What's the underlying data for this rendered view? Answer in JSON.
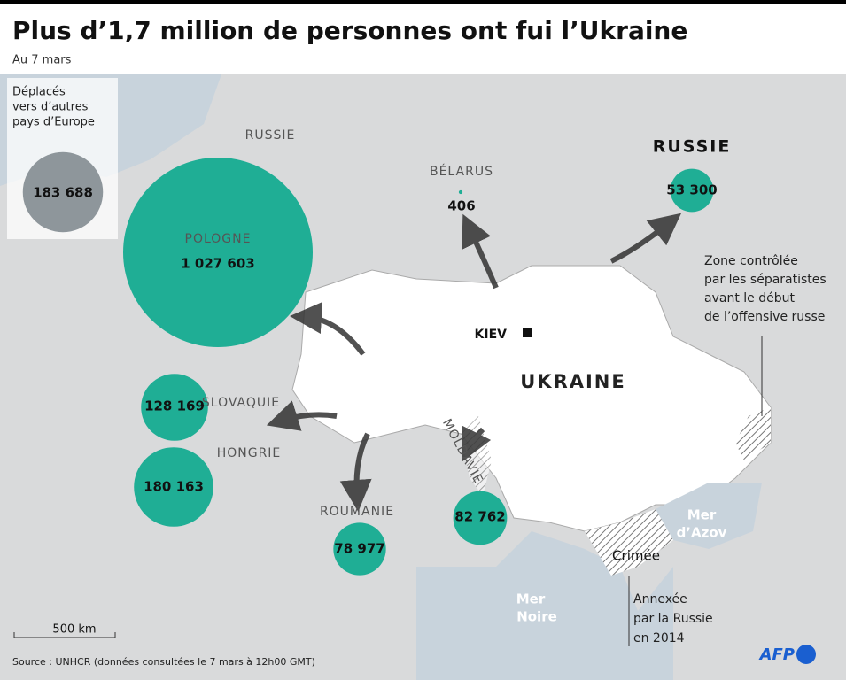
{
  "title": "Plus d’1,7 million de personnes ont fui l’Ukraine",
  "subtitle": "Au 7 mars",
  "legend_box": {
    "lines": [
      "Déplacés",
      "vers d’autres",
      "pays d’Europe"
    ],
    "value": 183688,
    "value_label": "183 688"
  },
  "refugees": [
    {
      "country": "POLOGNE",
      "value": 1027603,
      "value_label": "1 027 603"
    },
    {
      "country": "SLOVAQUIE",
      "value": 128169,
      "value_label": "128 169"
    },
    {
      "country": "HONGRIE",
      "value": 180163,
      "value_label": "180 163"
    },
    {
      "country": "ROUMANIE",
      "value": 78977,
      "value_label": "78 977"
    },
    {
      "country": "MOLDAVIE",
      "value": 82762,
      "value_label": "82 762"
    },
    {
      "country": "BÉLARUS",
      "value": 406,
      "value_label": "406"
    },
    {
      "country": "RUSSIE",
      "value": 53300,
      "value_label": "53 300"
    }
  ],
  "places": {
    "kaliningrad": "RUSSIE",
    "kiev": "KIEV",
    "ukraine": "UKRAINE",
    "black_sea": [
      "Mer",
      "Noire"
    ],
    "azov": [
      "Mer",
      "d’Azov"
    ],
    "crimea": "Crimée"
  },
  "annotations": {
    "separatists": [
      "Zone contrôlée",
      "par les séparatistes",
      "avant le début",
      "de l’offensive russe"
    ],
    "annexed": [
      "Annexée",
      "par la Russie",
      "en 2014"
    ]
  },
  "scale": "500 km",
  "source": "Source : UNHCR (données consultées le 7 mars à 12h00 GMT)",
  "credit": "AFP"
}
